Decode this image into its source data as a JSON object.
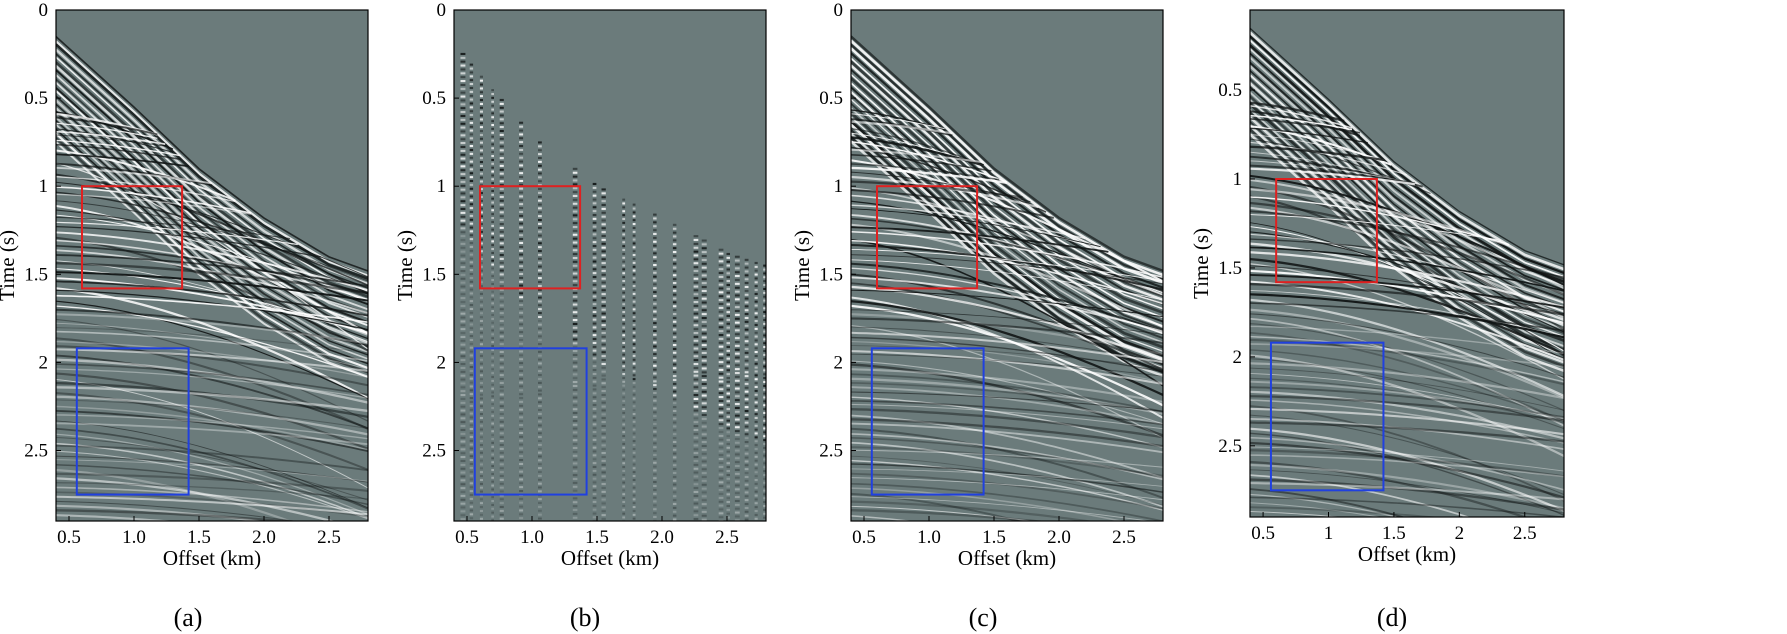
{
  "chart_data": [
    {
      "type": "heatmap",
      "panel": "a",
      "caption": "(a)",
      "xlabel": "Offset (km)",
      "ylabel": "Time (s)",
      "xlim": [
        0.4,
        2.8
      ],
      "ylim": [
        0,
        2.9
      ],
      "y_reversed": true,
      "xticks": [
        0.5,
        1.0,
        1.5,
        2.0,
        2.5
      ],
      "xtick_labels": [
        "0.5",
        "1.0",
        "1.5",
        "2.0",
        "2.5"
      ],
      "yticks": [
        0,
        0.5,
        1,
        1.5,
        2,
        2.5
      ],
      "ytick_labels": [
        "0",
        "0.5",
        "1",
        "1.5",
        "2",
        "2.5"
      ],
      "first_break": [
        [
          0.4,
          0.15
        ],
        [
          1.0,
          0.55
        ],
        [
          1.5,
          0.9
        ],
        [
          2.0,
          1.18
        ],
        [
          2.5,
          1.4
        ],
        [
          2.8,
          1.48
        ]
      ],
      "boxes": [
        {
          "color": "#e02020",
          "x": [
            0.6,
            1.37
          ],
          "y": [
            1.0,
            1.58
          ]
        },
        {
          "color": "#2040e0",
          "x": [
            0.56,
            1.42
          ],
          "y": [
            1.92,
            2.75
          ]
        }
      ],
      "traces": "full"
    },
    {
      "type": "heatmap",
      "panel": "b",
      "caption": "(b)",
      "xlabel": "Offset (km)",
      "ylabel": "Time (s)",
      "xlim": [
        0.4,
        2.8
      ],
      "ylim": [
        0,
        2.9
      ],
      "y_reversed": true,
      "xticks": [
        0.5,
        1.0,
        1.5,
        2.0,
        2.5
      ],
      "xtick_labels": [
        "0.5",
        "1.0",
        "1.5",
        "2.0",
        "2.5"
      ],
      "yticks": [
        0,
        0.5,
        1,
        1.5,
        2,
        2.5
      ],
      "ytick_labels": [
        "0",
        "0.5",
        "1",
        "1.5",
        "2",
        "2.5"
      ],
      "first_break": [
        [
          0.4,
          0.2
        ],
        [
          1.0,
          0.72
        ],
        [
          1.5,
          1.0
        ],
        [
          2.0,
          1.18
        ],
        [
          2.5,
          1.38
        ],
        [
          2.8,
          1.45
        ]
      ],
      "boxes": [
        {
          "color": "#e02020",
          "x": [
            0.6,
            1.37
          ],
          "y": [
            1.0,
            1.58
          ]
        },
        {
          "color": "#2040e0",
          "x": [
            0.56,
            1.42
          ],
          "y": [
            1.92,
            2.75
          ]
        }
      ],
      "traces": "decimated"
    },
    {
      "type": "heatmap",
      "panel": "c",
      "caption": "(c)",
      "xlabel": "Offset (km)",
      "ylabel": "Time (s)",
      "xlim": [
        0.4,
        2.8
      ],
      "ylim": [
        0,
        2.9
      ],
      "y_reversed": true,
      "xticks": [
        0.5,
        1.0,
        1.5,
        2.0,
        2.5
      ],
      "xtick_labels": [
        "0.5",
        "1.0",
        "1.5",
        "2.0",
        "2.5"
      ],
      "yticks": [
        0,
        0.5,
        1,
        1.5,
        2,
        2.5
      ],
      "ytick_labels": [
        "0",
        "0.5",
        "1",
        "1.5",
        "2",
        "2.5"
      ],
      "first_break": [
        [
          0.4,
          0.15
        ],
        [
          1.0,
          0.55
        ],
        [
          1.5,
          0.9
        ],
        [
          2.0,
          1.18
        ],
        [
          2.5,
          1.4
        ],
        [
          2.8,
          1.48
        ]
      ],
      "boxes": [
        {
          "color": "#e02020",
          "x": [
            0.6,
            1.37
          ],
          "y": [
            1.0,
            1.58
          ]
        },
        {
          "color": "#2040e0",
          "x": [
            0.56,
            1.42
          ],
          "y": [
            1.92,
            2.75
          ]
        }
      ],
      "traces": "full"
    },
    {
      "type": "heatmap",
      "panel": "d",
      "caption": "(d)",
      "xlabel": "Offset (km)",
      "ylabel": "Time (s)",
      "xlim": [
        0.4,
        2.8
      ],
      "ylim": [
        0.05,
        2.9
      ],
      "y_reversed": true,
      "xticks": [
        0.5,
        1,
        1.5,
        2,
        2.5
      ],
      "xtick_labels": [
        "0.5",
        "1",
        "1.5",
        "2",
        "2.5"
      ],
      "yticks": [
        0.5,
        1,
        1.5,
        2,
        2.5
      ],
      "ytick_labels": [
        "0.5",
        "1",
        "1.5",
        "2",
        "2.5"
      ],
      "first_break": [
        [
          0.4,
          0.15
        ],
        [
          1.0,
          0.55
        ],
        [
          1.5,
          0.9
        ],
        [
          2.0,
          1.18
        ],
        [
          2.5,
          1.4
        ],
        [
          2.8,
          1.48
        ]
      ],
      "boxes": [
        {
          "color": "#e02020",
          "x": [
            0.6,
            1.37
          ],
          "y": [
            1.0,
            1.58
          ]
        },
        {
          "color": "#2040e0",
          "x": [
            0.56,
            1.42
          ],
          "y": [
            1.92,
            2.75
          ]
        }
      ],
      "traces": "full"
    }
  ],
  "colors": {
    "background": "#6b7b7b",
    "dark": "#101414",
    "light": "#ffffff",
    "frame": "#000000"
  }
}
